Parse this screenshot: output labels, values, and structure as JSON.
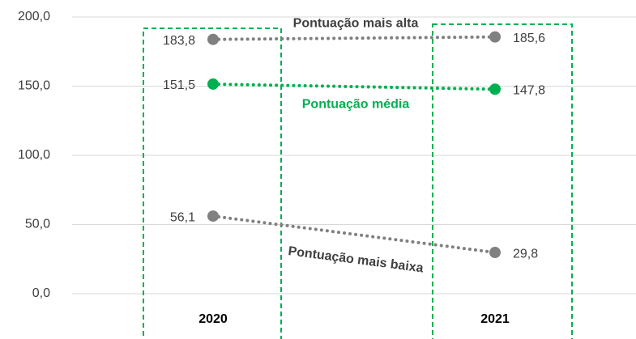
{
  "chart_data": {
    "type": "line",
    "categories": [
      "2020",
      "2021"
    ],
    "series": [
      {
        "name": "Pontuação mais alta",
        "color": "#808080",
        "values": [
          183.8,
          185.6
        ],
        "value_labels": [
          "183,8",
          "185,6"
        ]
      },
      {
        "name": "Pontuação média",
        "color": "#00b050",
        "values": [
          151.5,
          147.8
        ],
        "value_labels": [
          "151,5",
          "147,8"
        ]
      },
      {
        "name": "Pontuação mais baixa",
        "color": "#808080",
        "values": [
          56.1,
          29.8
        ],
        "value_labels": [
          "56,1",
          "29,8"
        ]
      }
    ],
    "ylim": [
      0,
      200
    ],
    "yticks": [
      {
        "value": 0,
        "label": "0,0"
      },
      {
        "value": 50,
        "label": "50,0"
      },
      {
        "value": 100,
        "label": "100,0"
      },
      {
        "value": 150,
        "label": "150,0"
      },
      {
        "value": 200,
        "label": "200,0"
      }
    ],
    "grid": true
  }
}
